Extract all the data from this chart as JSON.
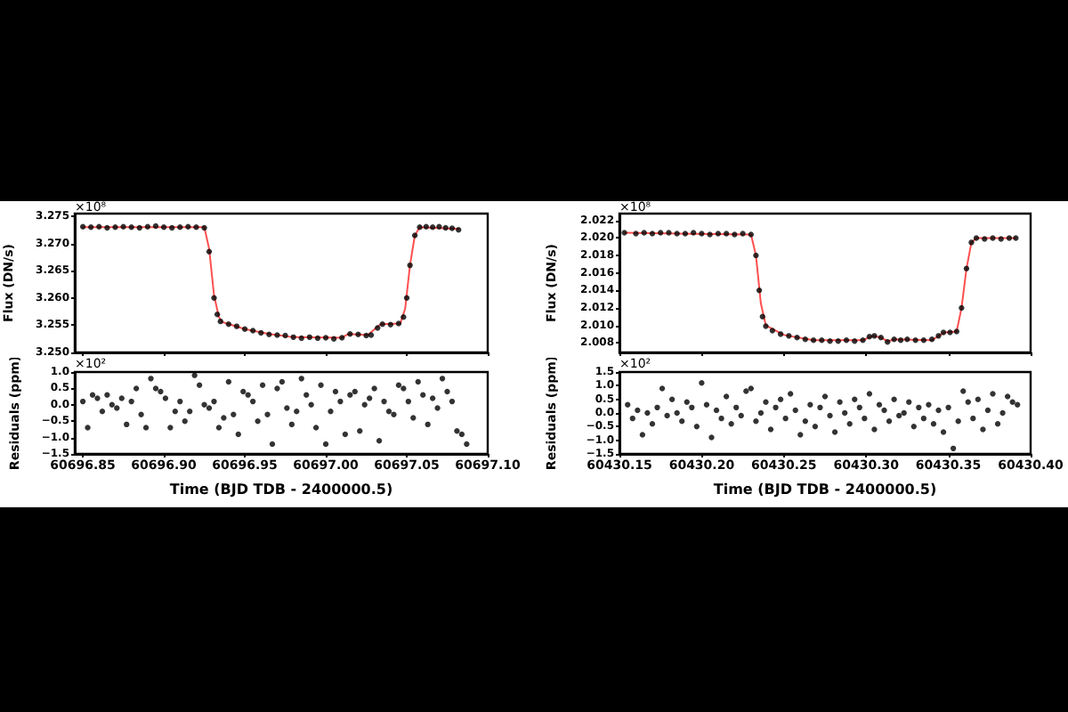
{
  "chart_data": [
    {
      "type": "scatter",
      "ylabel": "Flux (DN/s)",
      "annotations": [
        "×10⁸"
      ],
      "xlim": [
        60696.845,
        60697.1
      ],
      "ylim": [
        3.25,
        3.2755
      ],
      "tick_labels": "y",
      "marker": "circle",
      "xticks": [
        60696.85,
        60696.9,
        60696.95,
        60697,
        60697.05,
        60697.1
      ],
      "yticks": [
        {
          "value": 3.25,
          "label": "3.250"
        },
        3.255,
        {
          "value": 3.26,
          "label": "3.260"
        },
        3.265,
        {
          "value": 3.27,
          "label": "3.270"
        },
        3.275
      ],
      "series": [
        {
          "color": "#000000",
          "x": [
            60696.85,
            60696.855,
            60696.86,
            60696.865,
            60696.87,
            60696.875,
            60696.88,
            60696.885,
            60696.89,
            60696.895,
            60696.9,
            60696.905,
            60696.91,
            60696.915,
            60696.92,
            60696.925,
            60696.928,
            60696.931,
            60696.933,
            60696.935,
            60696.94,
            60696.945,
            60696.95,
            60696.955,
            60696.96,
            60696.965,
            60696.97,
            60696.975,
            60696.98,
            60696.985,
            60696.99,
            60696.995,
            60697.0,
            60697.005,
            60697.01,
            60697.015,
            60697.02,
            60697.025,
            60697.028,
            60697.032,
            60697.035,
            60697.04,
            60697.045,
            60697.048,
            60697.05,
            60697.052,
            60697.055,
            60697.058,
            60697.062,
            60697.066,
            60697.07,
            60697.074,
            60697.078,
            60697.082
          ],
          "values": [
            3.2731,
            3.273,
            3.2731,
            3.2729,
            3.273,
            3.2731,
            3.273,
            3.2729,
            3.2731,
            3.2732,
            3.273,
            3.2729,
            3.273,
            3.2731,
            3.273,
            3.2729,
            3.2685,
            3.26,
            3.257,
            3.2557,
            3.2552,
            3.2548,
            3.2543,
            3.254,
            3.2536,
            3.2533,
            3.2532,
            3.2531,
            3.2528,
            3.2526,
            3.2528,
            3.2526,
            3.2527,
            3.2525,
            3.2527,
            3.2534,
            3.2533,
            3.2531,
            3.2532,
            3.2545,
            3.2552,
            3.2551,
            3.2553,
            3.2565,
            3.26,
            3.266,
            3.2715,
            3.273,
            3.2731,
            3.273,
            3.2731,
            3.2729,
            3.2728,
            3.2725
          ]
        },
        {
          "type": "line",
          "marker": "none",
          "color": "#ff5050",
          "x": [
            60696.85,
            60696.925,
            60696.928,
            60696.931,
            60696.934,
            60696.936,
            60696.95,
            60696.965,
            60696.98,
            60697.01,
            60697.014,
            60697.026,
            60697.031,
            60697.034,
            60697.046,
            60697.049,
            60697.052,
            60697.055,
            60697.058,
            60697.082
          ],
          "values": [
            3.273,
            3.273,
            3.269,
            3.2605,
            3.2565,
            3.2556,
            3.2543,
            3.2534,
            3.2528,
            3.2527,
            3.2534,
            3.2532,
            3.2545,
            3.2552,
            3.2553,
            3.258,
            3.266,
            3.2715,
            3.273,
            3.2727
          ]
        }
      ]
    },
    {
      "type": "scatter",
      "xlabel": "Time (BJD TDB - 2400000.5)",
      "ylabel": "Residuals (ppm)",
      "annotations": [
        "×10²"
      ],
      "xlim": [
        60696.845,
        60697.1
      ],
      "ylim": [
        -1.5,
        1.0
      ],
      "marker": "circle",
      "xticks": [
        60696.85,
        {
          "value": 60696.9,
          "label": "60696.90"
        },
        60696.95,
        {
          "value": 60697,
          "label": "60697.00"
        },
        60697.05,
        {
          "value": 60697.1,
          "label": "60697.10"
        }
      ],
      "yticks": [
        {
          "value": -1.5,
          "label": "−1.5"
        },
        {
          "value": -1,
          "label": "−1.0"
        },
        {
          "value": -0.5,
          "label": "−0.5"
        },
        {
          "value": 0,
          "label": "0.0"
        },
        0.5,
        {
          "value": 1,
          "label": "1.0"
        }
      ],
      "series": [
        {
          "color": "#000000",
          "x": [
            60696.85,
            60696.853,
            60696.856,
            60696.859,
            60696.862,
            60696.865,
            60696.868,
            60696.871,
            60696.874,
            60696.877,
            60696.88,
            60696.883,
            60696.886,
            60696.889,
            60696.892,
            60696.895,
            60696.898,
            60696.901,
            60696.904,
            60696.907,
            60696.91,
            60696.913,
            60696.916,
            60696.919,
            60696.922,
            60696.925,
            60696.928,
            60696.931,
            60696.934,
            60696.937,
            60696.94,
            60696.943,
            60696.946,
            60696.949,
            60696.952,
            60696.955,
            60696.958,
            60696.961,
            60696.964,
            60696.967,
            60696.97,
            60696.973,
            60696.976,
            60696.979,
            60696.982,
            60696.985,
            60696.988,
            60696.991,
            60696.994,
            60696.997,
            60697.0,
            60697.003,
            60697.006,
            60697.009,
            60697.012,
            60697.015,
            60697.018,
            60697.021,
            60697.024,
            60697.027,
            60697.03,
            60697.033,
            60697.036,
            60697.039,
            60697.042,
            60697.045,
            60697.048,
            60697.051,
            60697.054,
            60697.057,
            60697.06,
            60697.063,
            60697.066,
            60697.069,
            60697.072,
            60697.075,
            60697.078,
            60697.081,
            60697.084,
            60697.087
          ],
          "values": [
            0.1,
            -0.7,
            0.3,
            0.2,
            -0.2,
            0.3,
            0.0,
            -0.1,
            0.2,
            -0.6,
            0.1,
            0.5,
            -0.3,
            -0.7,
            0.8,
            0.5,
            0.4,
            0.2,
            -0.7,
            -0.2,
            0.1,
            -0.5,
            -0.2,
            0.9,
            0.6,
            0.0,
            -0.1,
            0.1,
            -0.7,
            -0.4,
            0.7,
            -0.3,
            -0.9,
            0.4,
            0.3,
            0.1,
            -0.5,
            0.6,
            -0.3,
            -1.2,
            0.5,
            0.7,
            -0.1,
            -0.6,
            -0.2,
            0.8,
            0.3,
            0.0,
            -0.7,
            0.6,
            -1.2,
            -0.2,
            0.4,
            0.1,
            -0.9,
            0.3,
            0.4,
            -0.8,
            0.0,
            0.2,
            0.5,
            -1.1,
            0.1,
            -0.2,
            -0.3,
            0.6,
            0.5,
            0.1,
            -0.4,
            0.7,
            0.3,
            -0.6,
            0.2,
            -0.1,
            0.8,
            0.4,
            0.1,
            -0.8,
            -0.9,
            -1.2
          ]
        }
      ]
    },
    {
      "type": "scatter",
      "ylabel": "Flux (DN/s)",
      "annotations": [
        "×10⁸"
      ],
      "xlim": [
        60430.15,
        60430.4
      ],
      "ylim": [
        2.0069,
        2.0228
      ],
      "tick_labels": "y",
      "marker": "circle",
      "xticks": [
        60430.15,
        60430.2,
        60430.25,
        60430.3,
        60430.35,
        60430.4
      ],
      "yticks": [
        2.008,
        {
          "value": 2.01,
          "label": "2.010"
        },
        2.012,
        2.014,
        2.016,
        2.018,
        {
          "value": 2.02,
          "label": "2.020"
        },
        2.022
      ],
      "series": [
        {
          "color": "#000000",
          "x": [
            60430.153,
            60430.16,
            60430.165,
            60430.17,
            60430.175,
            60430.18,
            60430.185,
            60430.19,
            60430.195,
            60430.2,
            60430.205,
            60430.21,
            60430.215,
            60430.22,
            60430.225,
            60430.23,
            60430.233,
            60430.235,
            60430.237,
            60430.239,
            60430.243,
            60430.248,
            60430.253,
            60430.258,
            60430.263,
            60430.268,
            60430.273,
            60430.278,
            60430.283,
            60430.288,
            60430.293,
            60430.298,
            60430.302,
            60430.305,
            60430.309,
            60430.313,
            60430.317,
            60430.321,
            60430.325,
            60430.33,
            60430.335,
            60430.34,
            60430.344,
            60430.347,
            60430.351,
            60430.355,
            60430.358,
            60430.361,
            60430.364,
            60430.367,
            60430.372,
            60430.377,
            60430.382,
            60430.387,
            60430.391
          ],
          "values": [
            2.0206,
            2.0205,
            2.0206,
            2.0205,
            2.0206,
            2.0206,
            2.0205,
            2.0205,
            2.0206,
            2.0205,
            2.0204,
            2.0205,
            2.0205,
            2.0204,
            2.0205,
            2.0204,
            2.018,
            2.014,
            2.011,
            2.0099,
            2.0094,
            2.009,
            2.0088,
            2.0086,
            2.0084,
            2.0083,
            2.0083,
            2.0082,
            2.0082,
            2.0083,
            2.0082,
            2.0083,
            2.0087,
            2.0088,
            2.0086,
            2.0081,
            2.0084,
            2.0083,
            2.0084,
            2.0083,
            2.0083,
            2.0084,
            2.0088,
            2.0092,
            2.0092,
            2.0093,
            2.012,
            2.0165,
            2.0195,
            2.02,
            2.0199,
            2.02,
            2.0199,
            2.02,
            2.02
          ]
        },
        {
          "type": "line",
          "marker": "none",
          "color": "#ff5050",
          "x": [
            60430.153,
            60430.23,
            60430.233,
            60430.236,
            60430.239,
            60430.25,
            60430.268,
            60430.298,
            60430.304,
            60430.309,
            60430.313,
            60430.318,
            60430.34,
            60430.345,
            60430.348,
            60430.355,
            60430.358,
            60430.361,
            60430.364,
            60430.367,
            60430.391
          ],
          "values": [
            2.0206,
            2.0204,
            2.018,
            2.0125,
            2.01,
            2.0089,
            2.0083,
            2.0083,
            2.0088,
            2.0086,
            2.0082,
            2.0084,
            2.0083,
            2.0089,
            2.0092,
            2.0093,
            2.012,
            2.0165,
            2.0195,
            2.02,
            2.02
          ]
        }
      ]
    },
    {
      "type": "scatter",
      "xlabel": "Time (BJD TDB - 2400000.5)",
      "ylabel": "Residuals (ppm)",
      "annotations": [
        "×10²"
      ],
      "xlim": [
        60430.15,
        60430.4
      ],
      "ylim": [
        -1.5,
        1.5
      ],
      "marker": "circle",
      "xticks": [
        60430.15,
        {
          "value": 60430.2,
          "label": "60430.20"
        },
        60430.25,
        {
          "value": 60430.3,
          "label": "60430.30"
        },
        60430.35,
        {
          "value": 60430.4,
          "label": "60430.40"
        }
      ],
      "yticks": [
        {
          "value": -1.5,
          "label": "−1.5"
        },
        {
          "value": -1,
          "label": "−1.0"
        },
        {
          "value": -0.5,
          "label": "−0.5"
        },
        {
          "value": 0,
          "label": "0.0"
        },
        0.5,
        {
          "value": 1,
          "label": "1.0"
        },
        1.5
      ],
      "series": [
        {
          "color": "#000000",
          "x": [
            60430.155,
            60430.158,
            60430.161,
            60430.164,
            60430.167,
            60430.17,
            60430.173,
            60430.176,
            60430.179,
            60430.182,
            60430.185,
            60430.188,
            60430.191,
            60430.194,
            60430.197,
            60430.2,
            60430.203,
            60430.206,
            60430.209,
            60430.212,
            60430.215,
            60430.218,
            60430.221,
            60430.224,
            60430.227,
            60430.23,
            60430.233,
            60430.236,
            60430.239,
            60430.242,
            60430.245,
            60430.248,
            60430.251,
            60430.254,
            60430.257,
            60430.26,
            60430.263,
            60430.266,
            60430.269,
            60430.272,
            60430.275,
            60430.278,
            60430.281,
            60430.284,
            60430.287,
            60430.29,
            60430.293,
            60430.296,
            60430.299,
            60430.302,
            60430.305,
            60430.308,
            60430.311,
            60430.314,
            60430.317,
            60430.32,
            60430.323,
            60430.326,
            60430.329,
            60430.332,
            60430.335,
            60430.338,
            60430.341,
            60430.344,
            60430.347,
            60430.35,
            60430.353,
            60430.356,
            60430.359,
            60430.362,
            60430.365,
            60430.368,
            60430.371,
            60430.374,
            60430.377,
            60430.38,
            60430.383,
            60430.386,
            60430.389,
            60430.392
          ],
          "values": [
            0.3,
            -0.2,
            0.1,
            -0.8,
            0.0,
            -0.4,
            0.2,
            0.9,
            -0.1,
            0.5,
            0.0,
            -0.3,
            0.4,
            0.2,
            -0.5,
            1.1,
            0.3,
            -0.9,
            0.1,
            -0.2,
            0.6,
            -0.4,
            0.2,
            -0.1,
            0.8,
            0.9,
            -0.3,
            0.0,
            0.4,
            -0.6,
            0.2,
            0.5,
            -0.2,
            0.7,
            0.1,
            -0.8,
            -0.3,
            0.3,
            -0.5,
            0.2,
            0.6,
            -0.1,
            -0.7,
            0.4,
            0.0,
            -0.4,
            0.5,
            0.2,
            -0.2,
            0.7,
            -0.6,
            0.3,
            0.1,
            -0.3,
            0.5,
            -0.1,
            0.0,
            0.4,
            -0.5,
            0.2,
            -0.2,
            0.3,
            -0.4,
            0.1,
            -0.7,
            0.2,
            -1.3,
            -0.3,
            0.8,
            0.4,
            -0.2,
            0.5,
            -0.6,
            0.1,
            0.7,
            -0.4,
            0.0,
            0.6,
            0.4,
            0.3
          ]
        }
      ]
    }
  ]
}
